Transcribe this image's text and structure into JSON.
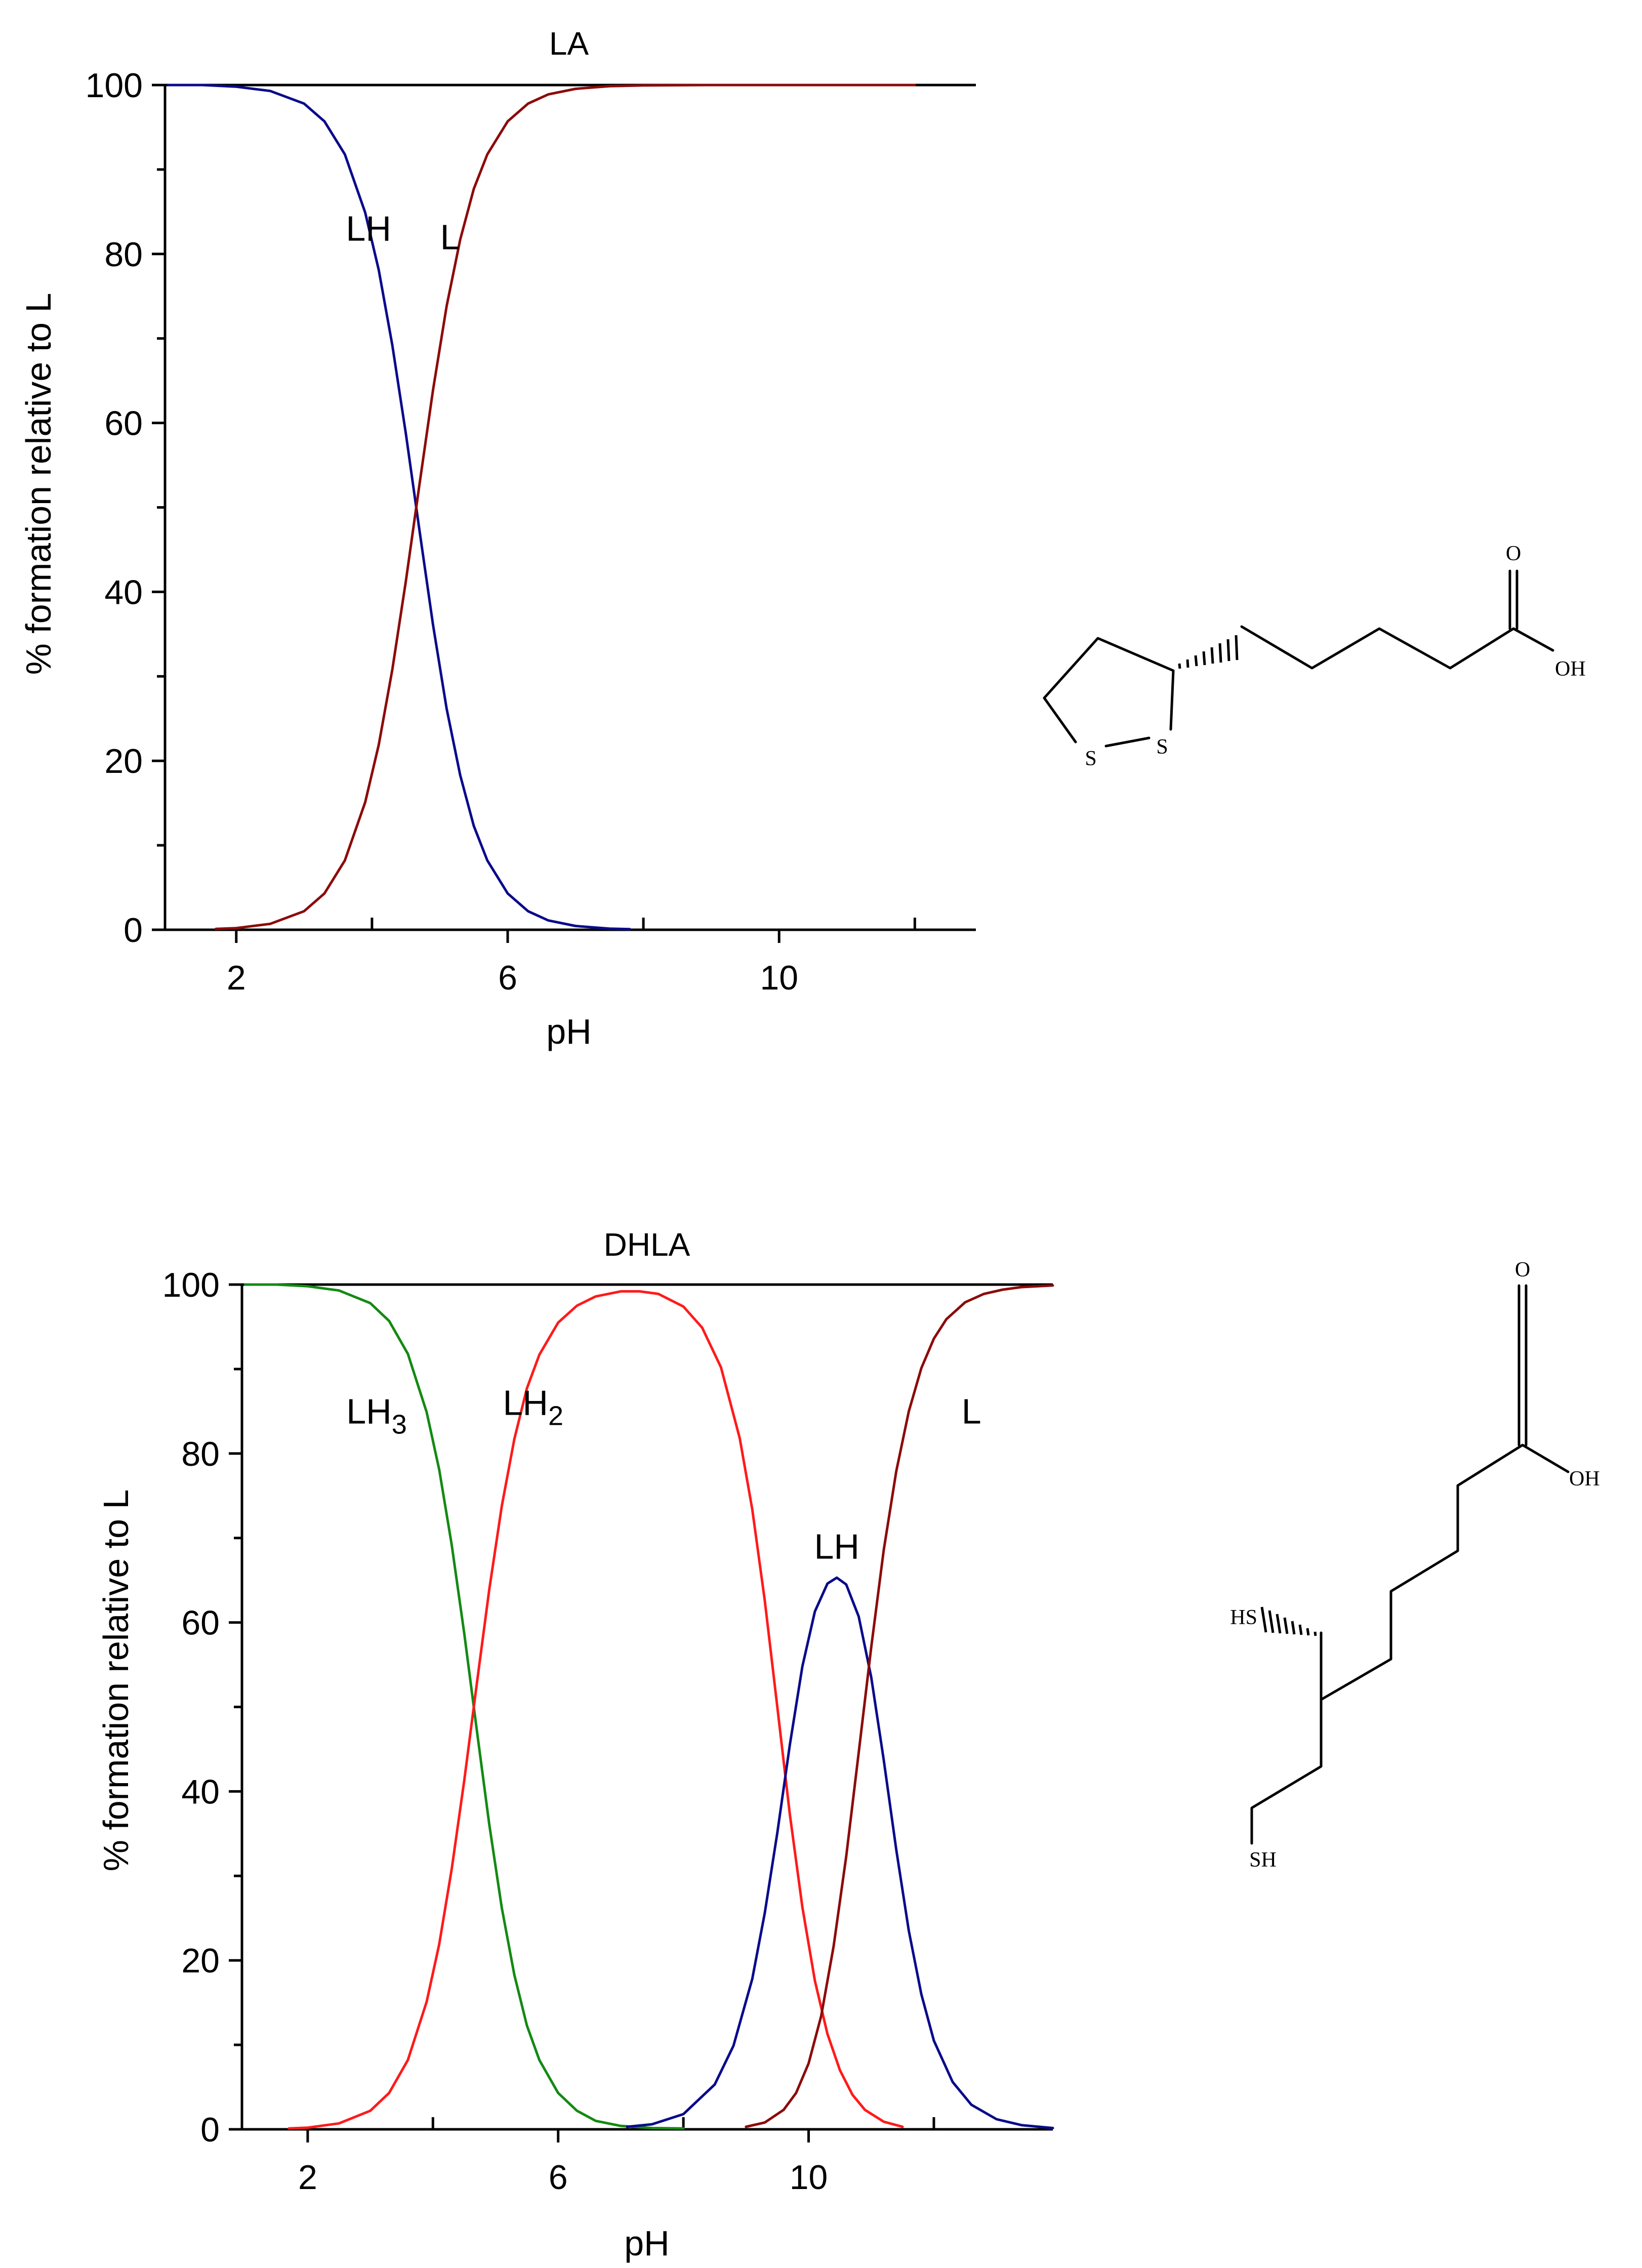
{
  "colors": {
    "LH3": "#138a13",
    "LH2": "#ff1a1a",
    "LH": "#0a0a8c",
    "L": "#8c0a0a",
    "axis": "#000000"
  },
  "chart_data": [
    {
      "type": "line",
      "title": "LA",
      "xlabel": "pH",
      "ylabel": "% formation relative to L",
      "xlim": [
        0.95,
        12.9
      ],
      "ylim": [
        0,
        100
      ],
      "xticks": [
        2,
        6,
        10
      ],
      "xminor": [
        4,
        8,
        12
      ],
      "yticks": [
        0,
        20,
        40,
        60,
        80,
        100
      ],
      "yminor": [
        10,
        30,
        50,
        70,
        90
      ],
      "grid": false,
      "legend": "inline labels",
      "top_line_xmax": 12.9,
      "series": [
        {
          "name": "LH",
          "color_key": "LH",
          "label_pos": [
            3.95,
            83
          ],
          "x": [
            1.0,
            1.5,
            2.0,
            2.5,
            3.0,
            3.3,
            3.6,
            3.9,
            4.1,
            4.3,
            4.5,
            4.7,
            4.9,
            5.1,
            5.3,
            5.5,
            5.7,
            6.0,
            6.3,
            6.6,
            7.0,
            7.5,
            7.8
          ],
          "y": [
            100,
            100,
            99.8,
            99.3,
            97.8,
            95.7,
            91.8,
            84.9,
            78.1,
            69.2,
            58.7,
            47.3,
            36.1,
            26.2,
            18.3,
            12.3,
            8.2,
            4.3,
            2.2,
            1.1,
            0.45,
            0.14,
            0.07
          ]
        },
        {
          "name": "L",
          "color_key": "L",
          "label_pos": [
            5.15,
            82
          ],
          "x": [
            1.7,
            2.0,
            2.5,
            3.0,
            3.3,
            3.6,
            3.9,
            4.1,
            4.3,
            4.5,
            4.7,
            4.9,
            5.1,
            5.3,
            5.5,
            5.7,
            6.0,
            6.3,
            6.6,
            7.0,
            7.5,
            8.0,
            9.0,
            10.0,
            11.0,
            12.0
          ],
          "y": [
            0.1,
            0.2,
            0.7,
            2.2,
            4.3,
            8.2,
            15.1,
            21.9,
            30.8,
            41.3,
            52.7,
            63.9,
            73.8,
            81.7,
            87.7,
            91.8,
            95.7,
            97.8,
            98.9,
            99.55,
            99.86,
            99.96,
            100,
            100,
            100,
            100
          ]
        }
      ]
    },
    {
      "type": "line",
      "title": "DHLA",
      "xlabel": "pH",
      "ylabel": "% formation relative to L",
      "xlim": [
        0.95,
        13.9
      ],
      "ylim": [
        0,
        100
      ],
      "xticks": [
        2,
        6,
        10
      ],
      "xminor": [
        4,
        8,
        12
      ],
      "yticks": [
        0,
        20,
        40,
        60,
        80,
        100
      ],
      "yminor": [
        10,
        30,
        50,
        70,
        90
      ],
      "grid": false,
      "legend": "inline labels",
      "top_line_xmax": 13.9,
      "series": [
        {
          "name": "LH",
          "sub": "3",
          "color_key": "LH3",
          "label_pos": [
            3.1,
            85
          ],
          "x": [
            1.0,
            1.5,
            2.0,
            2.5,
            3.0,
            3.3,
            3.6,
            3.9,
            4.1,
            4.3,
            4.5,
            4.7,
            4.9,
            5.1,
            5.3,
            5.5,
            5.7,
            6.0,
            6.3,
            6.6,
            7.0,
            7.5,
            8.0
          ],
          "y": [
            100,
            100,
            99.8,
            99.3,
            97.8,
            95.7,
            91.8,
            84.9,
            78.1,
            69.2,
            58.7,
            47.3,
            36.1,
            26.2,
            18.3,
            12.3,
            8.2,
            4.3,
            2.2,
            1.0,
            0.4,
            0.15,
            0.1
          ]
        },
        {
          "name": "LH",
          "sub": "2",
          "color_key": "LH2",
          "label_pos": [
            5.6,
            86
          ],
          "x": [
            1.7,
            2.0,
            2.5,
            3.0,
            3.3,
            3.6,
            3.9,
            4.1,
            4.3,
            4.5,
            4.7,
            4.9,
            5.1,
            5.3,
            5.5,
            5.7,
            6.0,
            6.3,
            6.6,
            7.0,
            7.3,
            7.6,
            8.0,
            8.3,
            8.6,
            8.9,
            9.1,
            9.3,
            9.5,
            9.7,
            9.9,
            10.1,
            10.3,
            10.5,
            10.7,
            10.9,
            11.2,
            11.5
          ],
          "y": [
            0.1,
            0.2,
            0.7,
            2.2,
            4.3,
            8.2,
            15.1,
            21.9,
            30.8,
            41.3,
            52.7,
            63.9,
            73.8,
            81.7,
            87.7,
            91.7,
            95.5,
            97.5,
            98.6,
            99.2,
            99.2,
            98.9,
            97.4,
            94.9,
            90.2,
            81.8,
            73.4,
            62.6,
            50.0,
            37.3,
            26.3,
            17.6,
            11.3,
            7.0,
            4.1,
            2.3,
            0.9,
            0.3
          ]
        },
        {
          "name": "LH",
          "color_key": "LH",
          "label_pos": [
            10.45,
            69
          ],
          "x": [
            7.1,
            7.5,
            8.0,
            8.5,
            8.8,
            9.1,
            9.3,
            9.5,
            9.7,
            9.9,
            10.1,
            10.3,
            10.45,
            10.6,
            10.8,
            11.0,
            11.2,
            11.4,
            11.6,
            11.8,
            12.0,
            12.3,
            12.6,
            13.0,
            13.4,
            13.9
          ],
          "y": [
            0.3,
            0.6,
            1.8,
            5.3,
            9.9,
            17.8,
            25.6,
            35.1,
            45.5,
            54.8,
            61.3,
            64.6,
            65.3,
            64.5,
            60.7,
            53.5,
            43.7,
            33.1,
            23.5,
            16.0,
            10.5,
            5.6,
            2.9,
            1.2,
            0.5,
            0.15
          ]
        },
        {
          "name": "L",
          "color_key": "L",
          "label_pos": [
            12.6,
            85
          ],
          "x": [
            9.0,
            9.3,
            9.6,
            9.8,
            10.0,
            10.2,
            10.4,
            10.6,
            10.8,
            11.0,
            11.2,
            11.4,
            11.6,
            11.8,
            12.0,
            12.2,
            12.5,
            12.8,
            13.1,
            13.4,
            13.9
          ],
          "y": [
            0.3,
            0.8,
            2.3,
            4.3,
            7.8,
            13.4,
            21.7,
            32.3,
            44.6,
            57.1,
            68.6,
            77.9,
            85.0,
            90.1,
            93.6,
            95.9,
            97.9,
            98.9,
            99.4,
            99.7,
            99.9
          ]
        }
      ]
    }
  ],
  "structures": {
    "la": {
      "O": "O",
      "OH": "OH",
      "S1": "S",
      "S2": "S"
    },
    "dhla": {
      "O": "O",
      "OH": "OH",
      "HS": "HS",
      "SH": "SH"
    }
  }
}
